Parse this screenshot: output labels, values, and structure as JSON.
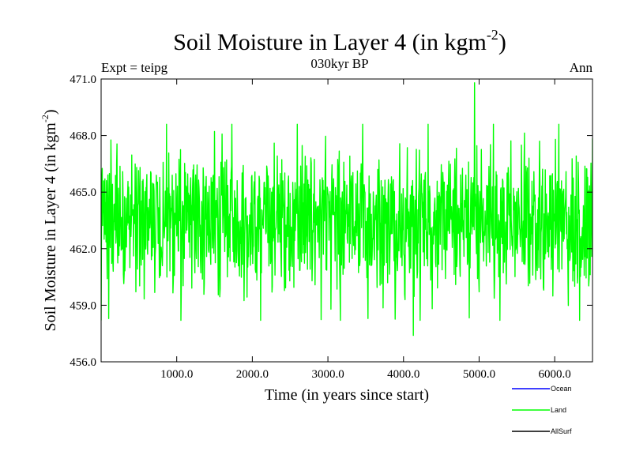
{
  "chart_data": {
    "type": "line",
    "title_main": "Soil Moisture in Layer 4 (in kgm",
    "title_sup": "-2",
    "title_close": ")",
    "subtitle": "030kyr BP",
    "left_label": "Expt = teipg",
    "right_label": "Ann",
    "xlabel": "Time (in years since start)",
    "ylabel_main": "Soil Moisture in Layer 4 (in kgm",
    "ylabel_sup": "-2",
    "ylabel_close": ")",
    "xlim": [
      0,
      6500
    ],
    "ylim": [
      456.0,
      471.0
    ],
    "x_ticks": [
      1000,
      2000,
      3000,
      4000,
      5000,
      6000
    ],
    "x_tick_labels": [
      "1000.0",
      "2000.0",
      "3000.0",
      "4000.0",
      "5000.0",
      "6000.0"
    ],
    "y_ticks": [
      456,
      459,
      462,
      465,
      468,
      471
    ],
    "y_tick_labels": [
      "456.0",
      "459.0",
      "462.0",
      "465.0",
      "468.0",
      "471.0"
    ],
    "series": [
      {
        "name": "Ocean",
        "color": "#0000ff",
        "values": []
      },
      {
        "name": "Land",
        "color": "#00ff00",
        "x_start": 0,
        "x_step": 10,
        "mean": 463.8,
        "typical_min": 459.0,
        "typical_max": 467.0,
        "extreme_max": 470.8,
        "extreme_min": 457.4,
        "values": [
          463.2,
          465.8,
          461.0,
          467.2,
          459.4,
          464.9,
          462.1,
          466.3,
          460.5,
          464.0,
          457.6,
          465.5,
          462.8,
          466.9,
          459.9,
          463.6,
          461.7,
          466.0,
          460.2,
          465.1,
          462.4,
          467.5,
          458.8,
          464.4,
          463.0,
          466.6,
          460.9,
          464.7,
          461.3,
          465.9,
          459.6,
          463.9,
          462.6,
          466.2,
          460.7,
          465.3,
          461.9,
          467.1,
          459.2,
          464.1,
          463.4,
          466.8,
          460.3,
          464.6,
          462.2,
          465.7,
          458.5,
          463.5,
          461.6,
          466.4
        ]
      },
      {
        "name": "AllSurf",
        "color": "#000000",
        "values": []
      }
    ]
  }
}
